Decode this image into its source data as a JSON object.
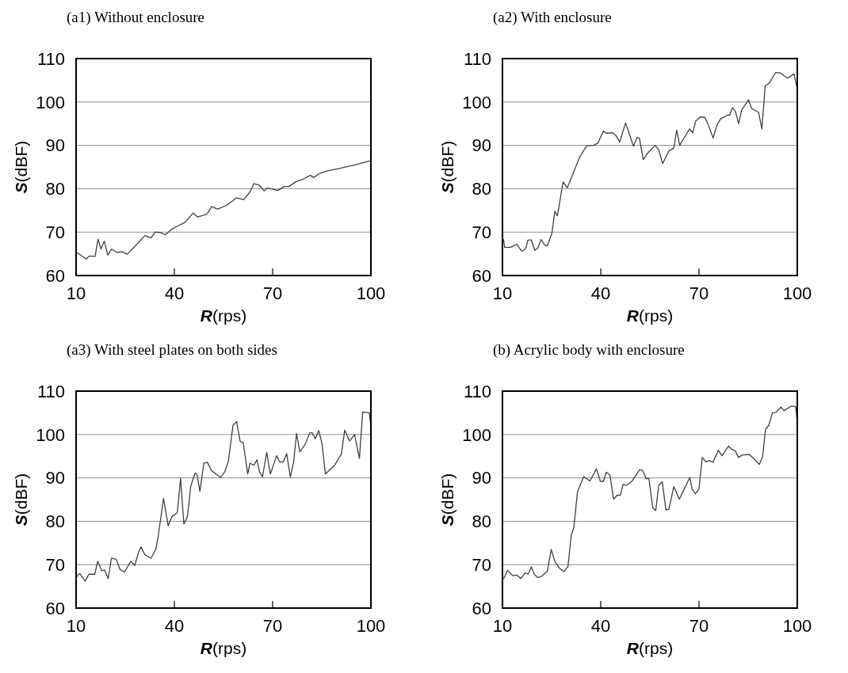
{
  "chart_data": [
    {
      "type": "line",
      "title": "(a1) Without enclosure",
      "xlabel": "R(rps)",
      "ylabel": "S(dBF)",
      "xlim": [
        10,
        100
      ],
      "xticks": [
        10,
        40,
        70,
        100
      ],
      "ylim": [
        60,
        110
      ],
      "yticks": [
        60,
        70,
        80,
        90,
        100,
        110
      ],
      "grid": "y",
      "marker": "none",
      "line_style": "solid",
      "series": [
        {
          "color": "#404040",
          "x": [
            10.3,
            13.1,
            14,
            15.8,
            16.7,
            17.6,
            18.6,
            19.7,
            20.8,
            22.5,
            24,
            25.6,
            27.3,
            31,
            32.9,
            34.1,
            35.8,
            37.2,
            39.1,
            41,
            43.3,
            45.7,
            47.1,
            49.9,
            51.4,
            53.2,
            56,
            58.9,
            61.2,
            63.1,
            64.3,
            66,
            67.4,
            68.3,
            71.6,
            73.5,
            74.9,
            77.3,
            79.6,
            81.5,
            82.5,
            84.3,
            86.7,
            90.5,
            95,
            100
          ],
          "values": [
            65.3,
            63.8,
            64.5,
            64.4,
            68.4,
            66.1,
            67.9,
            64.7,
            66.1,
            65.3,
            65.5,
            64.9,
            66.2,
            69.2,
            68.7,
            70,
            69.9,
            69.4,
            70.6,
            71.4,
            72.3,
            74.4,
            73.5,
            74.1,
            75.9,
            75.3,
            76.2,
            77.9,
            77.5,
            79.3,
            81.2,
            80.8,
            79.5,
            80.2,
            79.6,
            80.5,
            80.5,
            81.7,
            82.3,
            83.1,
            82.6,
            83.5,
            84.1,
            84.7,
            85.5,
            86.5
          ]
        }
      ]
    },
    {
      "type": "line",
      "title": "(a2) With enclosure",
      "xlabel": "R(rps)",
      "ylabel": "S(dBF)",
      "xlim": [
        10,
        100
      ],
      "xticks": [
        10,
        40,
        70,
        100
      ],
      "ylim": [
        60,
        110
      ],
      "yticks": [
        60,
        70,
        80,
        90,
        100,
        110
      ],
      "grid": "y",
      "marker": "none",
      "line_style": "solid",
      "series": [
        {
          "color": "#404040",
          "x": [
            10.3,
            10.7,
            12.4,
            14.4,
            15.9,
            17.1,
            17.8,
            18.8,
            19.9,
            20.8,
            21.8,
            22.9,
            23.7,
            25.1,
            26,
            26.8,
            28.5,
            29.8,
            33.5,
            35.7,
            37.8,
            39.2,
            40.8,
            41.7,
            43.6,
            44.5,
            45.8,
            47.6,
            50,
            51.1,
            51.8,
            53,
            54.2,
            56.6,
            57.7,
            58.9,
            60.8,
            62.3,
            63.2,
            64.1,
            67.1,
            68.1,
            69,
            70.3,
            71.7,
            72.6,
            74.3,
            75.5,
            76.6,
            78.8,
            79.4,
            80.2,
            81.1,
            82.1,
            83,
            85.1,
            86.1,
            88.2,
            89.2,
            90.2,
            91.5,
            93.4,
            94.8,
            97,
            99,
            100
          ],
          "values": [
            68.4,
            66.5,
            66.5,
            67.2,
            65.6,
            66.2,
            68.2,
            68.2,
            65.8,
            66.4,
            68.3,
            67,
            66.8,
            69.8,
            74.8,
            73.8,
            81.6,
            80.2,
            87.2,
            89.9,
            90,
            90.6,
            93.3,
            92.8,
            92.9,
            92.4,
            90.8,
            95.2,
            89.8,
            91.8,
            91.7,
            86.7,
            88.1,
            90,
            89,
            85.8,
            88.7,
            89.4,
            93.5,
            90,
            93.8,
            92.9,
            95.6,
            96.5,
            96.5,
            95.2,
            91.7,
            94.7,
            96.1,
            97,
            97,
            98.7,
            97.9,
            95,
            98.1,
            100.5,
            98.5,
            97.6,
            93.8,
            103.7,
            104.4,
            106.8,
            106.7,
            105.5,
            106.5,
            103
          ]
        }
      ]
    },
    {
      "type": "line",
      "title": "(a3) With steel plates on both sides",
      "xlabel": "R(rps)",
      "ylabel": "S(dBF)",
      "xlim": [
        10,
        100
      ],
      "xticks": [
        10,
        40,
        70,
        100
      ],
      "ylim": [
        60,
        110
      ],
      "yticks": [
        60,
        70,
        80,
        90,
        100,
        110
      ],
      "grid": "y",
      "marker": "none",
      "line_style": "solid",
      "series": [
        {
          "color": "#404040",
          "x": [
            10.2,
            11.1,
            12.8,
            13.9,
            15.7,
            16.6,
            17.8,
            18.7,
            19.8,
            20.8,
            22.3,
            23.4,
            24.8,
            26.7,
            27.9,
            29.1,
            29.8,
            31,
            32.9,
            34.3,
            35,
            36.7,
            38.1,
            39.3,
            40.9,
            41.9,
            42.9,
            44,
            45,
            46.3,
            46.9,
            47.8,
            49,
            50.1,
            51.3,
            54.1,
            55.4,
            56.5,
            57.9,
            59,
            60.1,
            61,
            62.4,
            63.1,
            64.3,
            65.2,
            66,
            66.9,
            68.2,
            69.3,
            71.2,
            72.1,
            73.3,
            74.3,
            75.4,
            76.4,
            77.3,
            78.3,
            80,
            81.3,
            82.1,
            83,
            84.1,
            85.1,
            86.1,
            87.2,
            89,
            91,
            92,
            93.5,
            95,
            96.5,
            97.5,
            99.5,
            100
          ],
          "values": [
            67.2,
            68,
            66.2,
            67.8,
            67.8,
            70.8,
            68.6,
            68.8,
            66.8,
            71.5,
            71.2,
            68.9,
            68.3,
            70.8,
            69.8,
            72.9,
            74.1,
            72.3,
            71.5,
            73.5,
            76.2,
            85.3,
            79,
            81.1,
            82,
            89.9,
            79.4,
            81.1,
            88.1,
            91.1,
            90.8,
            86.9,
            93.4,
            93.6,
            91.7,
            90.1,
            91.4,
            93.9,
            102.1,
            103,
            98.4,
            98.2,
            90.9,
            93.4,
            92.9,
            94.2,
            91.4,
            90.2,
            95.9,
            90.9,
            95.1,
            93.7,
            93.7,
            95.6,
            90.2,
            93.6,
            100.2,
            96,
            97.8,
            100.4,
            100.4,
            99,
            100.9,
            97.8,
            90.9,
            91.7,
            93,
            95.5,
            101,
            98.5,
            100,
            94.5,
            105.2,
            105,
            102
          ]
        }
      ]
    },
    {
      "type": "line",
      "title": "(b) Acrylic body with enclosure",
      "xlabel": "R(rps)",
      "ylabel": "S(dBF)",
      "xlim": [
        10,
        100
      ],
      "xticks": [
        10,
        40,
        70,
        100
      ],
      "ylim": [
        60,
        110
      ],
      "yticks": [
        60,
        70,
        80,
        90,
        100,
        110
      ],
      "grid": "y",
      "marker": "none",
      "line_style": "solid",
      "series": [
        {
          "color": "#404040",
          "x": [
            10.3,
            11.6,
            13.1,
            14.4,
            15.6,
            16.9,
            17.8,
            18.8,
            19.7,
            20.8,
            21.9,
            23.7,
            24.9,
            26,
            27.4,
            28.8,
            30,
            31,
            31.8,
            32.9,
            34.8,
            36.7,
            38.7,
            39.9,
            40.8,
            41.7,
            42.8,
            43.9,
            45,
            46,
            46.8,
            47.9,
            49.5,
            51.9,
            52.8,
            53.9,
            54.7,
            55.9,
            56.8,
            57.7,
            58.8,
            59.9,
            60.8,
            62.3,
            64,
            65.1,
            67.2,
            67.9,
            68.9,
            70,
            71,
            72.1,
            73.1,
            74.3,
            75.9,
            77,
            79,
            80,
            81.1,
            82,
            83.3,
            85.3,
            86.7,
            88.4,
            89.4,
            90.3,
            91.3,
            92.4,
            93.5,
            95,
            96,
            98,
            99.5,
            100
          ],
          "values": [
            66.7,
            68.7,
            67.5,
            67.6,
            66.8,
            68.1,
            67.8,
            69.5,
            67.8,
            67,
            67.3,
            68.5,
            73.5,
            70.7,
            69.2,
            68.4,
            69.6,
            76.7,
            78.6,
            86.8,
            90.3,
            89.3,
            92.1,
            89.2,
            89.2,
            91.3,
            90.7,
            85.1,
            86,
            86,
            88.5,
            88.3,
            89.2,
            91.9,
            91.7,
            89.8,
            89.9,
            83.1,
            82.5,
            88.3,
            89.1,
            82.6,
            82.8,
            88,
            85.1,
            86.8,
            90.1,
            87.4,
            86.3,
            87.5,
            94.7,
            93.7,
            94,
            93.6,
            96.4,
            95.1,
            97.3,
            96.6,
            96.2,
            94.7,
            95.3,
            95.4,
            94.5,
            93.1,
            94.8,
            101.2,
            102.1,
            105,
            105.1,
            106.3,
            105.5,
            106.5,
            106.5,
            103
          ]
        }
      ]
    }
  ]
}
